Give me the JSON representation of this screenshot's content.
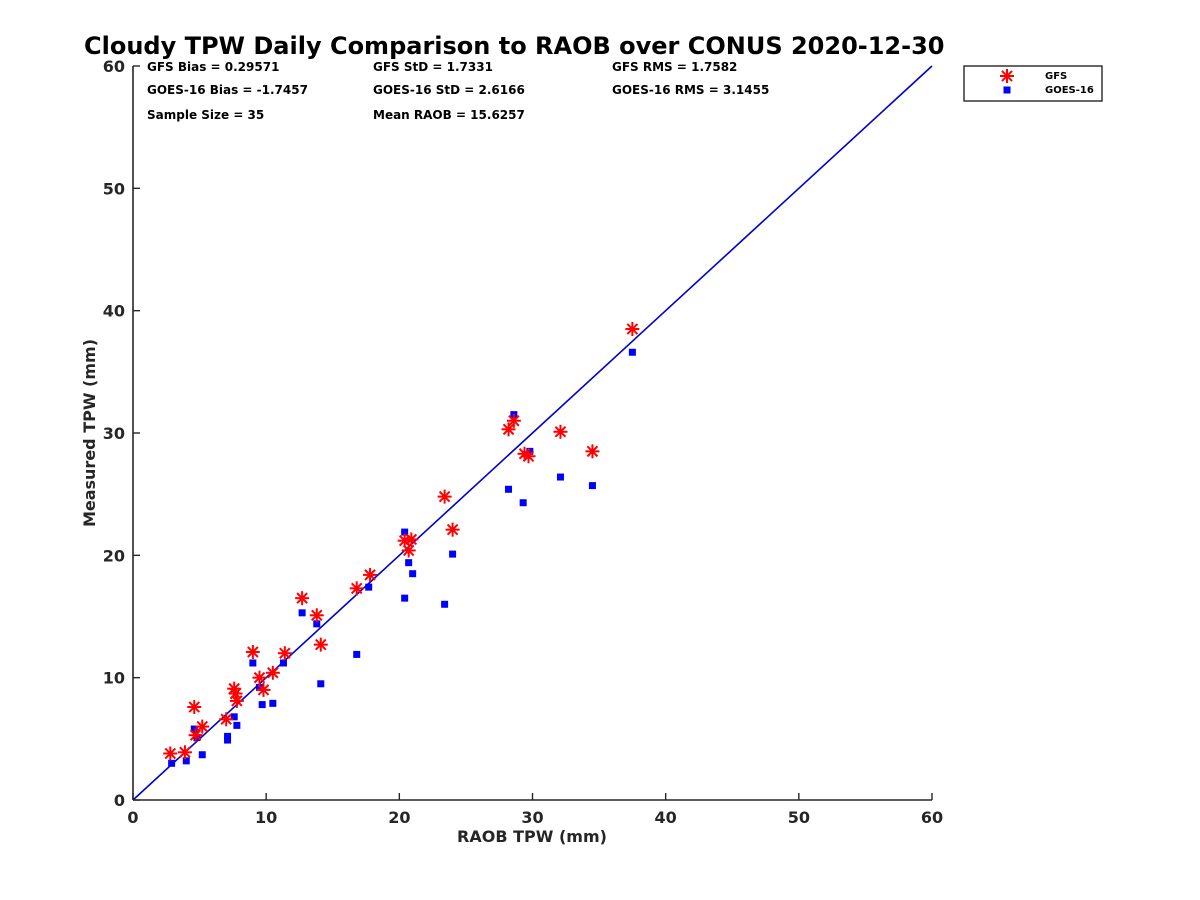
{
  "chart_data": {
    "type": "scatter",
    "title": "Cloudy TPW Daily Comparison to RAOB over CONUS 2020-12-30",
    "xlabel": "RAOB TPW (mm)",
    "ylabel": "Measured TPW (mm)",
    "xlim": [
      0,
      60
    ],
    "ylim": [
      0,
      60
    ],
    "xticks": [
      "0",
      "10",
      "20",
      "30",
      "40",
      "50",
      "60"
    ],
    "yticks": [
      "0",
      "10",
      "20",
      "30",
      "40",
      "50",
      "60"
    ],
    "grid": false,
    "legend_position": "top-right, outside plot",
    "reference_line": {
      "from": [
        0,
        0
      ],
      "to": [
        60,
        60
      ],
      "color": "#0000cc"
    },
    "stats": [
      [
        "GFS Bias = 0.29571",
        "GFS StD = 1.7331",
        "GFS RMS = 1.7582"
      ],
      [
        "GOES-16 Bias = -1.7457",
        "GOES-16 StD = 2.6166",
        "GOES-16 RMS = 3.1455"
      ],
      [
        "Sample Size = 35",
        "Mean RAOB = 15.6257",
        ""
      ]
    ],
    "series": [
      {
        "name": "GFS",
        "marker": "asterisk",
        "color": "#ff0000",
        "points": [
          [
            2.8,
            3.8
          ],
          [
            3.9,
            3.9
          ],
          [
            4.6,
            7.6
          ],
          [
            4.7,
            5.3
          ],
          [
            5.2,
            6.0
          ],
          [
            7.0,
            6.6
          ],
          [
            7.6,
            9.1
          ],
          [
            7.7,
            8.7
          ],
          [
            7.8,
            8.1
          ],
          [
            9.0,
            12.1
          ],
          [
            9.5,
            10.0
          ],
          [
            9.8,
            9.0
          ],
          [
            10.5,
            10.4
          ],
          [
            11.4,
            12.0
          ],
          [
            12.7,
            16.5
          ],
          [
            13.8,
            15.1
          ],
          [
            14.1,
            12.7
          ],
          [
            16.8,
            17.3
          ],
          [
            17.8,
            18.4
          ],
          [
            20.4,
            21.2
          ],
          [
            20.7,
            20.4
          ],
          [
            20.9,
            21.3
          ],
          [
            23.4,
            24.8
          ],
          [
            24.0,
            22.1
          ],
          [
            28.2,
            30.3
          ],
          [
            28.6,
            31.0
          ],
          [
            29.4,
            28.3
          ],
          [
            29.7,
            28.1
          ],
          [
            32.1,
            30.1
          ],
          [
            34.5,
            28.5
          ],
          [
            37.5,
            38.5
          ]
        ]
      },
      {
        "name": "GOES-16",
        "marker": "square",
        "color": "#0000ff",
        "points": [
          [
            2.9,
            3.0
          ],
          [
            4.0,
            3.2
          ],
          [
            4.6,
            5.8
          ],
          [
            4.8,
            5.1
          ],
          [
            5.2,
            3.7
          ],
          [
            7.1,
            5.2
          ],
          [
            7.1,
            4.9
          ],
          [
            7.6,
            6.8
          ],
          [
            7.8,
            6.1
          ],
          [
            9.0,
            11.2
          ],
          [
            9.5,
            9.2
          ],
          [
            9.7,
            7.8
          ],
          [
            10.5,
            7.9
          ],
          [
            11.3,
            11.2
          ],
          [
            12.7,
            15.3
          ],
          [
            13.8,
            14.4
          ],
          [
            14.1,
            9.5
          ],
          [
            16.8,
            11.9
          ],
          [
            17.7,
            17.4
          ],
          [
            20.4,
            21.9
          ],
          [
            20.4,
            16.5
          ],
          [
            20.7,
            19.4
          ],
          [
            21.0,
            18.5
          ],
          [
            23.4,
            16.0
          ],
          [
            24.0,
            20.1
          ],
          [
            28.2,
            25.4
          ],
          [
            28.6,
            31.5
          ],
          [
            29.3,
            24.3
          ],
          [
            29.8,
            28.5
          ],
          [
            32.1,
            26.4
          ],
          [
            34.5,
            25.7
          ],
          [
            37.5,
            36.6
          ]
        ]
      }
    ]
  }
}
